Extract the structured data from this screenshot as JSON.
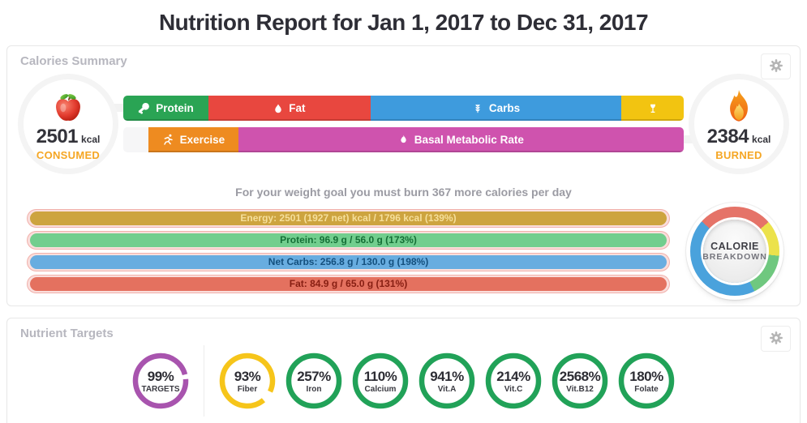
{
  "page": {
    "title": "Nutrition Report for Jan 1, 2017 to Dec 31, 2017"
  },
  "calories_panel": {
    "title": "Calories Summary",
    "consumed": {
      "value": "2501",
      "unit": "kcal",
      "label": "CONSUMED",
      "label_color": "#f5a623"
    },
    "burned": {
      "value": "2384",
      "unit": "kcal",
      "label": "BURNED",
      "label_color": "#f5a623"
    },
    "intake_segments": [
      {
        "name": "protein",
        "label": "Protein",
        "icon": "drumstick-icon",
        "color": "#2aa454",
        "width_pct": 15.2
      },
      {
        "name": "fat",
        "label": "Fat",
        "icon": "droplet-icon",
        "color": "#e8473f",
        "width_pct": 28.9
      },
      {
        "name": "carbs",
        "label": "Carbs",
        "icon": "wheat-icon",
        "color": "#3e9bdd",
        "width_pct": 44.8
      },
      {
        "name": "alcohol",
        "label": "",
        "icon": "wine-glass-icon",
        "color": "#f2c411",
        "width_pct": 11.1
      }
    ],
    "burn_segments": [
      {
        "name": "gap",
        "label": "",
        "icon": null,
        "color": "",
        "width_pct": 4.5,
        "track": true
      },
      {
        "name": "exercise",
        "label": "Exercise",
        "icon": "runner-icon",
        "color": "#ee8b20",
        "width_pct": 16.0
      },
      {
        "name": "bmr",
        "label": "Basal Metabolic Rate",
        "icon": "flame-icon",
        "color": "#cf53ae",
        "width_pct": 79.5
      }
    ],
    "goal_text": "For your weight goal you must burn 367 more calories per day",
    "stat_bars": [
      {
        "name": "energy",
        "text": "Energy: 2501 (1927 net) kcal / 1796 kcal (139%)",
        "fill": "#cda43f",
        "text_color": "#f5df9b"
      },
      {
        "name": "protein",
        "text": "Protein: 96.9 g / 56.0 g (173%)",
        "fill": "#72ce8e",
        "text_color": "#156f36"
      },
      {
        "name": "net-carbs",
        "text": "Net Carbs: 256.8 g / 130.0 g (198%)",
        "fill": "#68ade0",
        "text_color": "#14507e"
      },
      {
        "name": "fat",
        "text": "Fat: 84.9 g / 65.0 g (131%)",
        "fill": "#e4715f",
        "text_color": "#871e12"
      }
    ],
    "breakdown": {
      "line1": "CALORIE",
      "line2": "BREAKDOWN",
      "start_deg": -48,
      "segments": [
        {
          "name": "fat",
          "color": "#e57368",
          "deg": 97
        },
        {
          "name": "alcohol",
          "color": "#ece24b",
          "deg": 47
        },
        {
          "name": "protein",
          "color": "#6fc87f",
          "deg": 58
        },
        {
          "name": "carbs",
          "color": "#4aa2dc",
          "deg": 158
        }
      ]
    }
  },
  "nutrient_panel": {
    "title": "Nutrient Targets",
    "rings": [
      {
        "percent": "99%",
        "label": "TARGETS",
        "color": "#a854ae",
        "pct": 99
      },
      {
        "percent": "93%",
        "label": "Fiber",
        "color": "#f6c51a",
        "pct": 93
      },
      {
        "percent": "257%",
        "label": "Iron",
        "color": "#21a258",
        "pct": 100
      },
      {
        "percent": "110%",
        "label": "Calcium",
        "color": "#21a258",
        "pct": 100
      },
      {
        "percent": "941%",
        "label": "Vit.A",
        "color": "#21a258",
        "pct": 100
      },
      {
        "percent": "214%",
        "label": "Vit.C",
        "color": "#21a258",
        "pct": 100
      },
      {
        "percent": "2568%",
        "label": "Vit.B12",
        "color": "#21a258",
        "pct": 100
      },
      {
        "percent": "180%",
        "label": "Folate",
        "color": "#21a258",
        "pct": 100
      }
    ]
  }
}
